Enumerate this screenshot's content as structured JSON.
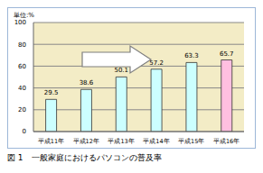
{
  "chart_data": {
    "type": "bar",
    "title": "図 1　一般家庭におけるパソコンの普及率",
    "ylabel": "単位:%",
    "categories": [
      "平成11年",
      "平成12年",
      "平成13年",
      "平成14年",
      "平成15年",
      "平成16年"
    ],
    "values": [
      29.5,
      38.6,
      50.1,
      57.2,
      63.3,
      65.7
    ],
    "colors": [
      "#ccffff",
      "#ccffff",
      "#ccffff",
      "#ccffff",
      "#ccffff",
      "#ffbfe0"
    ],
    "ylim": [
      0,
      100
    ],
    "yticks": [
      0,
      20,
      40,
      60,
      80,
      100
    ],
    "grid": true,
    "data_labels": true
  }
}
